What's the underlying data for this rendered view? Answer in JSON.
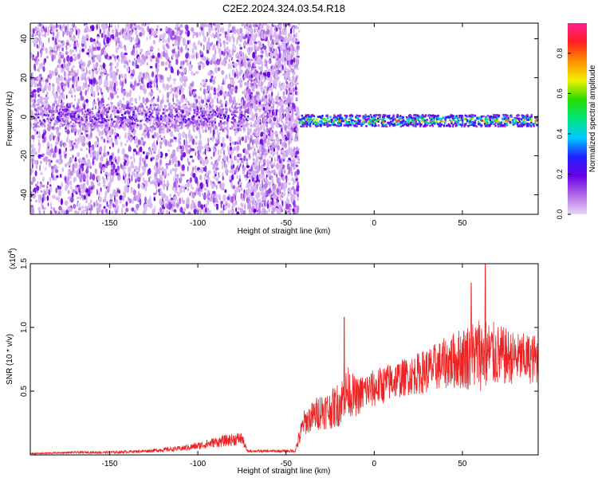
{
  "title": "C2E2.2024.324.03.54.R18",
  "chart_data": [
    {
      "type": "heatmap",
      "title": "C2E2.2024.324.03.54.R18",
      "xlabel": "Height of straight line (km)",
      "ylabel": "Frequency (Hz)",
      "xlim": [
        -195,
        93
      ],
      "ylim": [
        -50,
        48
      ],
      "xticks": [
        -150,
        -100,
        -50,
        0,
        50
      ],
      "yticks": [
        -40,
        -20,
        0,
        20,
        40
      ],
      "colorbar": {
        "label": "Normalized spectral amplitude",
        "range": [
          0,
          0.95
        ],
        "ticks": [
          0.0,
          0.2,
          0.4,
          0.6,
          0.8
        ],
        "colormap": [
          "#e6d6f5",
          "#b06ae6",
          "#6a00e6",
          "#2020ff",
          "#00c8ff",
          "#00e680",
          "#28dc00",
          "#f0f000",
          "#ff9000",
          "#ff2020",
          "#ff2090"
        ]
      },
      "segments": [
        {
          "x": [
            -195,
            -72
          ],
          "band_center_hz": 0,
          "band_halfwidth_hz": 6,
          "peak_amplitude": 0.3,
          "scatter_fill": "full-height"
        },
        {
          "x": [
            -72,
            -43
          ],
          "band_center_hz": 0,
          "band_halfwidth_hz": 48,
          "peak_amplitude": 0.1,
          "scatter_fill": "full-height"
        },
        {
          "x": [
            -43,
            93
          ],
          "band_center_hz": -2,
          "band_halfwidth_hz": 3,
          "peak_amplitude": 0.9,
          "scatter_fill": "none"
        }
      ]
    },
    {
      "type": "line",
      "xlabel": "Height of straight line (km)",
      "ylabel": "SNR (10 * v/v)",
      "multiplier_label": "(x10",
      "multiplier_exp": "4",
      "multiplier_close": ")",
      "xlim": [
        -195,
        93
      ],
      "ylim": [
        0,
        1.5
      ],
      "xticks": [
        -150,
        -100,
        -50,
        0,
        50
      ],
      "yticks": [
        0.5,
        1.0,
        1.5
      ],
      "color": "#ee2222",
      "series": [
        {
          "x": [
            -195,
            -170,
            -150,
            -130,
            -110,
            -100,
            -90,
            -80,
            -75,
            -72,
            -60,
            -45,
            -42,
            -40,
            -35,
            -30,
            -25,
            -20,
            -15,
            -10,
            -5,
            0,
            10,
            20,
            30,
            40,
            50,
            60,
            70,
            80,
            93
          ],
          "y": [
            0.01,
            0.02,
            0.02,
            0.03,
            0.05,
            0.07,
            0.1,
            0.12,
            0.13,
            0.03,
            0.03,
            0.03,
            0.15,
            0.25,
            0.3,
            0.35,
            0.35,
            0.4,
            0.5,
            0.45,
            0.5,
            0.52,
            0.58,
            0.62,
            0.66,
            0.72,
            0.76,
            0.8,
            0.78,
            0.76,
            0.75
          ],
          "noise": [
            0.005,
            0.008,
            0.01,
            0.012,
            0.02,
            0.03,
            0.04,
            0.05,
            0.05,
            0.01,
            0.01,
            0.01,
            0.08,
            0.1,
            0.12,
            0.15,
            0.15,
            0.18,
            0.2,
            0.15,
            0.15,
            0.15,
            0.15,
            0.15,
            0.18,
            0.2,
            0.25,
            0.3,
            0.25,
            0.2,
            0.2
          ],
          "spikes": [
            {
              "x": -17,
              "y": 1.08
            },
            {
              "x": 63,
              "y": 1.5
            },
            {
              "x": 55,
              "y": 1.35
            }
          ]
        }
      ]
    }
  ]
}
